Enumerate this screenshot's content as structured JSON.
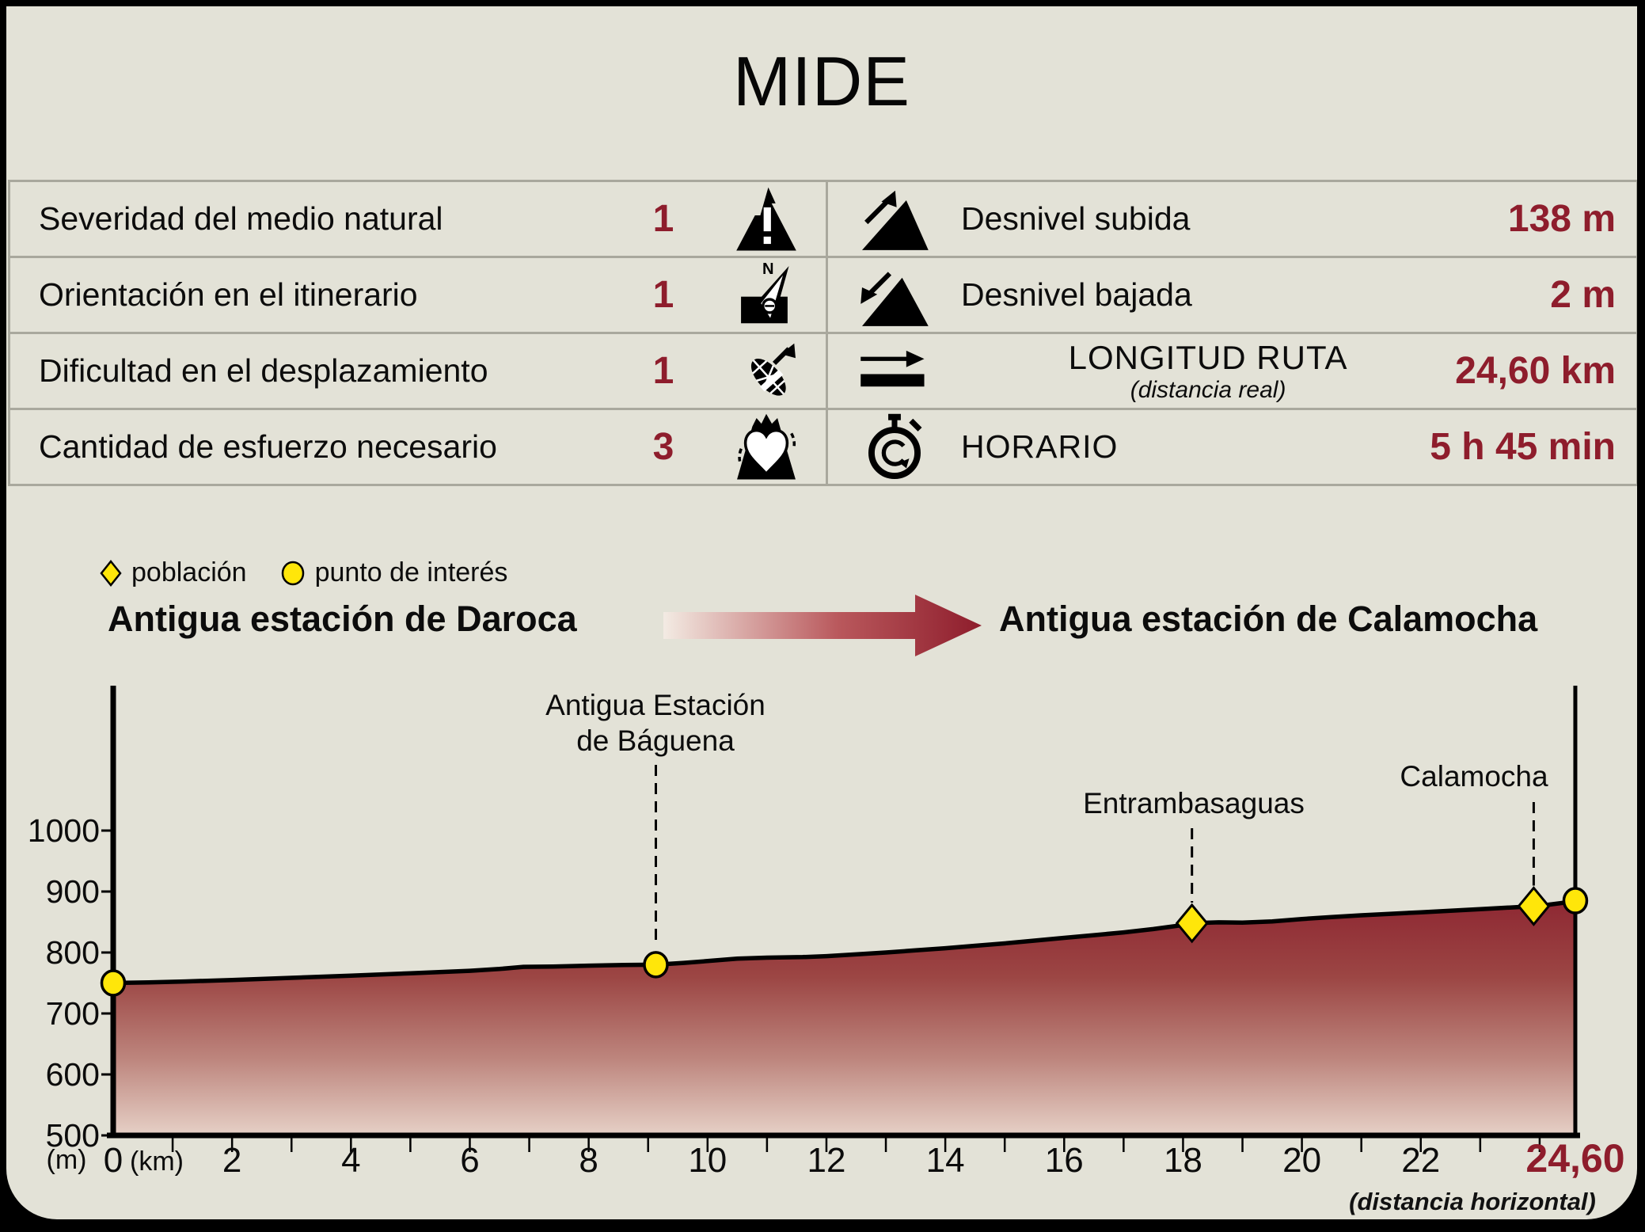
{
  "title": "MIDE",
  "colors": {
    "accent": "#8e1d2c",
    "background": "#e3e2d7",
    "marker_yellow": "#ffe60a",
    "separator": "#a9a89d"
  },
  "table": {
    "left_rows": [
      {
        "label": "Severidad del medio natural",
        "value": "1",
        "icon": "mountain-warning-icon"
      },
      {
        "label": "Orientación en el itinerario",
        "value": "1",
        "icon": "compass-icon"
      },
      {
        "label": "Dificultad en el desplazamiento",
        "value": "1",
        "icon": "boot-icon"
      },
      {
        "label": "Cantidad de esfuerzo necesario",
        "value": "3",
        "icon": "heart-effort-icon"
      }
    ],
    "right_rows": [
      {
        "label": "Desnivel subida",
        "value": "138 m",
        "icon": "ascent-triangle-icon"
      },
      {
        "label": "Desnivel bajada",
        "value": "2 m",
        "icon": "descent-triangle-icon"
      },
      {
        "label": "LONGITUD RUTA",
        "sublabel": "(distancia real)",
        "value": "24,60 km",
        "icon": "route-length-icon"
      },
      {
        "label": "HORARIO",
        "value": "5 h 45 min",
        "icon": "stopwatch-icon"
      }
    ]
  },
  "legend": [
    {
      "shape": "diamond",
      "label": "población"
    },
    {
      "shape": "circle",
      "label": "punto de interés"
    }
  ],
  "route": {
    "from": "Antigua estación de Daroca",
    "to": "Antigua estación de Calamocha"
  },
  "chart_data": {
    "type": "area",
    "title": "",
    "xlabel": "(km)",
    "ylabel": "(m)",
    "xlim": [
      0,
      24.6
    ],
    "ylim": [
      500,
      1200
    ],
    "grid": false,
    "footnote": "(distancia horizontal)",
    "x_ticks": [
      {
        "km": 0,
        "label": "0"
      },
      {
        "km": 2,
        "label": "2"
      },
      {
        "km": 4,
        "label": "4"
      },
      {
        "km": 6,
        "label": "6"
      },
      {
        "km": 8,
        "label": "8"
      },
      {
        "km": 10,
        "label": "10"
      },
      {
        "km": 12,
        "label": "12"
      },
      {
        "km": 14,
        "label": "14"
      },
      {
        "km": 16,
        "label": "16"
      },
      {
        "km": 18,
        "label": "18"
      },
      {
        "km": 20,
        "label": "20"
      },
      {
        "km": 22,
        "label": "22"
      },
      {
        "km": 24.6,
        "label": "24,60",
        "accent": true
      }
    ],
    "y_ticks": [
      500,
      600,
      700,
      800,
      900,
      1000
    ],
    "profile": [
      [
        0,
        750
      ],
      [
        0.6,
        751
      ],
      [
        1.2,
        752.5
      ],
      [
        2,
        755
      ],
      [
        3,
        758.5
      ],
      [
        4,
        762
      ],
      [
        5,
        766
      ],
      [
        6,
        770
      ],
      [
        6.5,
        773
      ],
      [
        6.9,
        776.5
      ],
      [
        7.4,
        777
      ],
      [
        8,
        778.5
      ],
      [
        8.6,
        779.5
      ],
      [
        9.13,
        780
      ],
      [
        9.6,
        783
      ],
      [
        10,
        786
      ],
      [
        10.5,
        790
      ],
      [
        11,
        791.5
      ],
      [
        11.6,
        792.5
      ],
      [
        12,
        794
      ],
      [
        12.6,
        797.5
      ],
      [
        13,
        800
      ],
      [
        13.5,
        803.5
      ],
      [
        14,
        807
      ],
      [
        14.5,
        811
      ],
      [
        15,
        815
      ],
      [
        15.5,
        819.5
      ],
      [
        16,
        824
      ],
      [
        16.5,
        828.5
      ],
      [
        17,
        833
      ],
      [
        17.5,
        838.5
      ],
      [
        18,
        845
      ],
      [
        18.15,
        848
      ],
      [
        18.6,
        849.5
      ],
      [
        19,
        849
      ],
      [
        19.5,
        851
      ],
      [
        20,
        855
      ],
      [
        20.5,
        858
      ],
      [
        21,
        861
      ],
      [
        21.5,
        863.5
      ],
      [
        22,
        866
      ],
      [
        22.5,
        868.5
      ],
      [
        23,
        871
      ],
      [
        23.45,
        873.5
      ],
      [
        23.9,
        876
      ],
      [
        24.15,
        878.5
      ],
      [
        24.4,
        881.5
      ],
      [
        24.6,
        885
      ]
    ],
    "markers": [
      {
        "shape": "circle",
        "km": 0,
        "m": 750,
        "label": ""
      },
      {
        "shape": "circle",
        "km": 9.13,
        "m": 780,
        "label": "Antigua Estación\nde Báguena"
      },
      {
        "shape": "diamond",
        "km": 18.15,
        "m": 848,
        "label": "Entrambasaguas"
      },
      {
        "shape": "diamond",
        "km": 23.9,
        "m": 876,
        "label": "Calamocha"
      },
      {
        "shape": "circle",
        "km": 24.6,
        "m": 885,
        "label": ""
      }
    ]
  }
}
